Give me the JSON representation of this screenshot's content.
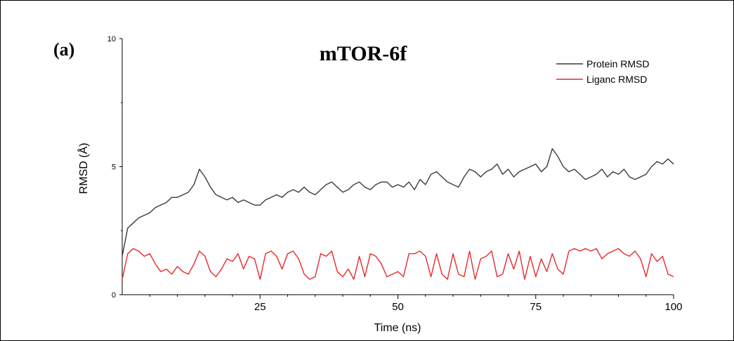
{
  "panel_label": "(a)",
  "chart_data": {
    "type": "line",
    "title": "mTOR-6f",
    "xlabel": "Time (ns)",
    "ylabel": "RMSD (Å)",
    "xlim": [
      0,
      100
    ],
    "ylim": [
      0,
      10
    ],
    "x_ticks": [
      25,
      50,
      75,
      100
    ],
    "x_tick_labels": [
      "25",
      "50",
      "75",
      "100"
    ],
    "y_ticks": [
      0,
      5,
      10
    ],
    "y_tick_labels": [
      "0",
      "5",
      "10"
    ],
    "grid": false,
    "legend_position": "top-right",
    "series": [
      {
        "name": "Protein RMSD",
        "color": "#3a3a3a",
        "x": [
          0,
          1,
          2,
          3,
          4,
          5,
          6,
          7,
          8,
          9,
          10,
          11,
          12,
          13,
          14,
          15,
          16,
          17,
          18,
          19,
          20,
          21,
          22,
          23,
          24,
          25,
          26,
          27,
          28,
          29,
          30,
          31,
          32,
          33,
          34,
          35,
          36,
          37,
          38,
          39,
          40,
          41,
          42,
          43,
          44,
          45,
          46,
          47,
          48,
          49,
          50,
          51,
          52,
          53,
          54,
          55,
          56,
          57,
          58,
          59,
          60,
          61,
          62,
          63,
          64,
          65,
          66,
          67,
          68,
          69,
          70,
          71,
          72,
          73,
          74,
          75,
          76,
          77,
          78,
          79,
          80,
          81,
          82,
          83,
          84,
          85,
          86,
          87,
          88,
          89,
          90,
          91,
          92,
          93,
          94,
          95,
          96,
          97,
          98,
          99,
          100
        ],
        "y": [
          1.5,
          2.6,
          2.8,
          3.0,
          3.1,
          3.2,
          3.4,
          3.5,
          3.6,
          3.8,
          3.8,
          3.9,
          4.0,
          4.3,
          4.9,
          4.6,
          4.2,
          3.9,
          3.8,
          3.7,
          3.8,
          3.6,
          3.7,
          3.6,
          3.5,
          3.5,
          3.7,
          3.8,
          3.9,
          3.8,
          4.0,
          4.1,
          4.0,
          4.2,
          4.0,
          3.9,
          4.1,
          4.3,
          4.4,
          4.2,
          4.0,
          4.1,
          4.3,
          4.4,
          4.2,
          4.1,
          4.3,
          4.4,
          4.4,
          4.2,
          4.3,
          4.2,
          4.4,
          4.1,
          4.5,
          4.3,
          4.7,
          4.8,
          4.6,
          4.4,
          4.3,
          4.2,
          4.6,
          4.9,
          4.8,
          4.6,
          4.8,
          4.9,
          5.1,
          4.7,
          4.9,
          4.6,
          4.8,
          4.9,
          5.0,
          5.1,
          4.8,
          5.0,
          5.7,
          5.4,
          5.0,
          4.8,
          4.9,
          4.7,
          4.5,
          4.6,
          4.7,
          4.9,
          4.6,
          4.8,
          4.7,
          4.9,
          4.6,
          4.5,
          4.6,
          4.7,
          5.0,
          5.2,
          5.1,
          5.3,
          5.1
        ]
      },
      {
        "name": "Liganc RMSD",
        "color": "#e8292b",
        "x": [
          0,
          1,
          2,
          3,
          4,
          5,
          6,
          7,
          8,
          9,
          10,
          11,
          12,
          13,
          14,
          15,
          16,
          17,
          18,
          19,
          20,
          21,
          22,
          23,
          24,
          25,
          26,
          27,
          28,
          29,
          30,
          31,
          32,
          33,
          34,
          35,
          36,
          37,
          38,
          39,
          40,
          41,
          42,
          43,
          44,
          45,
          46,
          47,
          48,
          49,
          50,
          51,
          52,
          53,
          54,
          55,
          56,
          57,
          58,
          59,
          60,
          61,
          62,
          63,
          64,
          65,
          66,
          67,
          68,
          69,
          70,
          71,
          72,
          73,
          74,
          75,
          76,
          77,
          78,
          79,
          80,
          81,
          82,
          83,
          84,
          85,
          86,
          87,
          88,
          89,
          90,
          91,
          92,
          93,
          94,
          95,
          96,
          97,
          98,
          99,
          100
        ],
        "y": [
          0.6,
          1.6,
          1.8,
          1.7,
          1.5,
          1.6,
          1.2,
          0.9,
          1.0,
          0.8,
          1.1,
          0.9,
          0.8,
          1.2,
          1.7,
          1.5,
          0.9,
          0.7,
          1.0,
          1.4,
          1.3,
          1.6,
          1.0,
          1.5,
          1.4,
          0.6,
          1.6,
          1.7,
          1.5,
          1.0,
          1.6,
          1.7,
          1.4,
          0.8,
          0.6,
          0.7,
          1.6,
          1.5,
          1.7,
          0.9,
          0.7,
          1.0,
          0.6,
          1.5,
          0.7,
          1.6,
          1.5,
          1.2,
          0.7,
          0.8,
          0.9,
          0.7,
          1.6,
          1.6,
          1.7,
          1.5,
          0.7,
          1.6,
          0.8,
          0.6,
          1.6,
          0.8,
          0.7,
          1.7,
          0.6,
          1.4,
          1.5,
          1.7,
          0.7,
          0.8,
          1.6,
          1.0,
          1.7,
          0.6,
          1.5,
          0.7,
          1.4,
          0.9,
          1.6,
          1.0,
          0.8,
          1.7,
          1.8,
          1.7,
          1.8,
          1.7,
          1.8,
          1.4,
          1.6,
          1.7,
          1.8,
          1.6,
          1.5,
          1.7,
          1.4,
          0.7,
          1.6,
          1.3,
          1.5,
          0.8,
          0.7
        ]
      }
    ]
  }
}
